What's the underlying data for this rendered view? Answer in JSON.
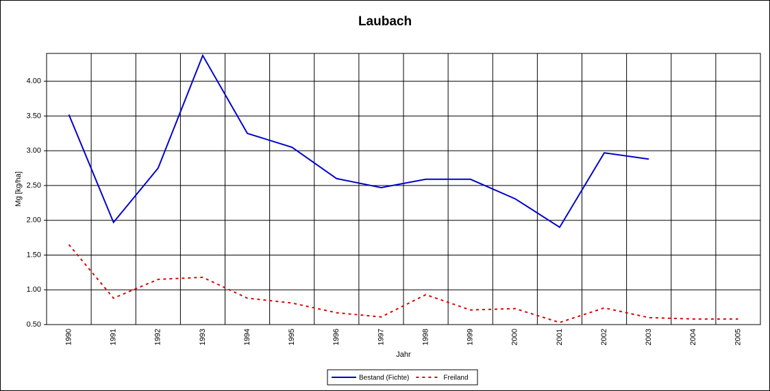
{
  "chart_data": {
    "type": "line",
    "title": "Laubach",
    "x_label": "Jahr",
    "y_label": "Mg [kg/ha]",
    "categories": [
      "1990",
      "1991",
      "1992",
      "1993",
      "1994",
      "1995",
      "1996",
      "1997",
      "1998",
      "1999",
      "2000",
      "2001",
      "2002",
      "2003",
      "2004",
      "2005"
    ],
    "series": [
      {
        "name": "Bestand (Fichte)",
        "color": "#0000cc",
        "dash": "solid",
        "values": [
          3.52,
          1.97,
          2.75,
          4.37,
          3.25,
          3.05,
          2.6,
          2.47,
          2.59,
          2.59,
          2.31,
          1.9,
          2.97,
          2.88,
          null,
          null
        ]
      },
      {
        "name": "Freiland",
        "color": "#dd0000",
        "dash": "dotted",
        "values": [
          1.65,
          0.88,
          1.15,
          1.18,
          0.88,
          0.81,
          0.67,
          0.61,
          0.93,
          0.71,
          0.73,
          0.53,
          0.74,
          0.6,
          0.58,
          0.58
        ]
      }
    ],
    "ylim": [
      0.5,
      4.4
    ],
    "yticks": [
      {
        "value": 0.5,
        "label": "0.50"
      },
      {
        "value": 1,
        "label": "1.00"
      },
      {
        "value": 1.5,
        "label": "1.50"
      },
      {
        "value": 2,
        "label": "2.00"
      },
      {
        "value": 2.5,
        "label": "2.50"
      },
      {
        "value": 3,
        "label": "3.00"
      },
      {
        "value": 3.5,
        "label": "3.50"
      },
      {
        "value": 4,
        "label": "4.00"
      }
    ],
    "grid": true,
    "legend": "bottom"
  }
}
